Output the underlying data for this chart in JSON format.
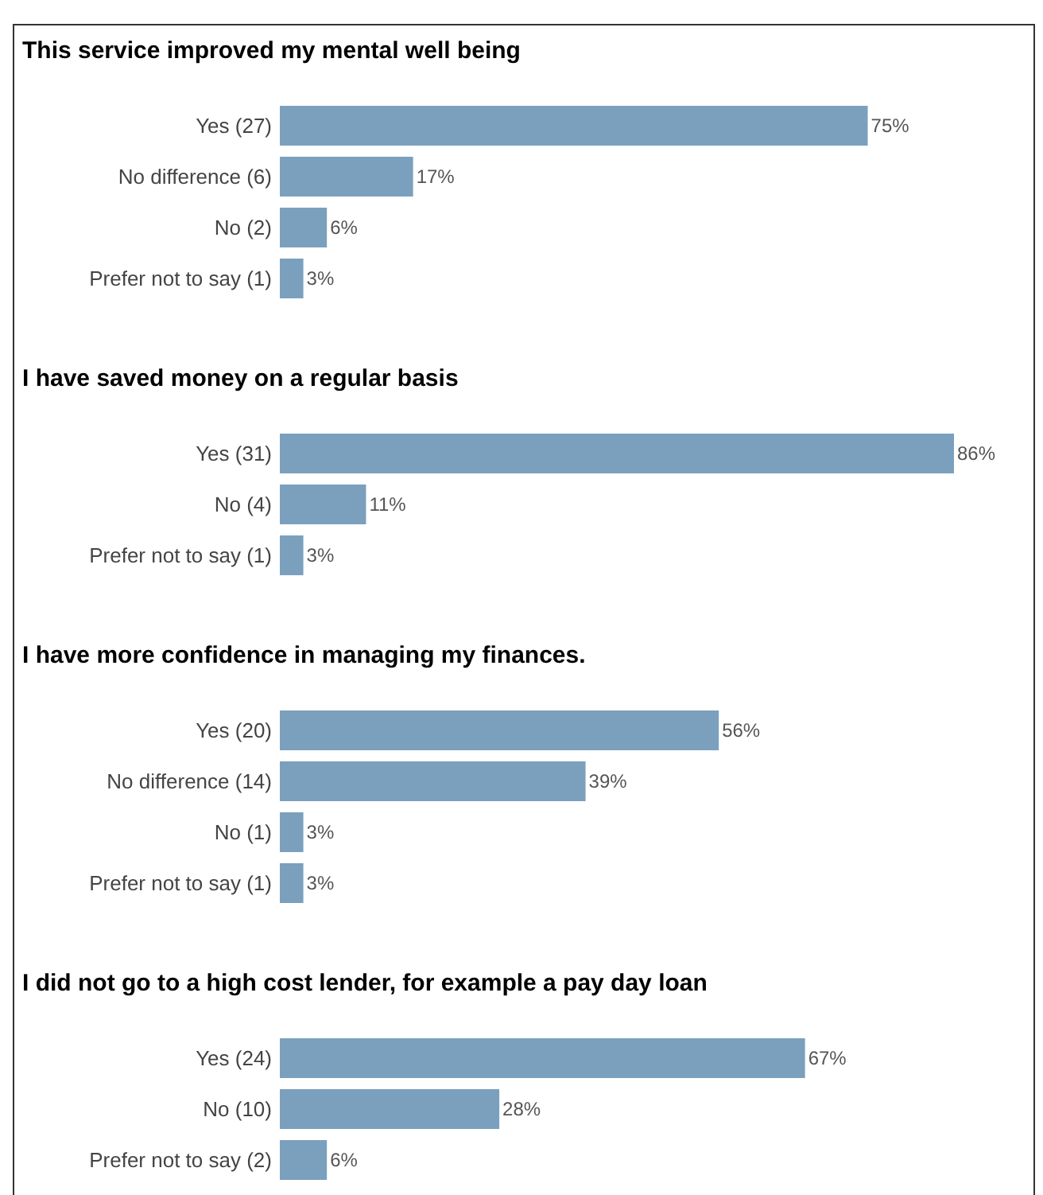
{
  "chart_data": [
    {
      "type": "bar",
      "orientation": "horizontal",
      "title": "This service improved my mental well being",
      "categories": [
        "Yes (27)",
        "No difference (6)",
        "No (2)",
        "Prefer not to say (1)"
      ],
      "values": [
        75,
        17,
        6,
        3
      ],
      "value_labels": [
        "75%",
        "17%",
        "6%",
        "3%"
      ],
      "color": "#7aa0be"
    },
    {
      "type": "bar",
      "orientation": "horizontal",
      "title": "I have saved money on a regular basis",
      "categories": [
        "Yes (31)",
        "No (4)",
        "Prefer not to say (1)"
      ],
      "values": [
        86,
        11,
        3
      ],
      "value_labels": [
        "86%",
        "11%",
        "3%"
      ],
      "color": "#7aa0be"
    },
    {
      "type": "bar",
      "orientation": "horizontal",
      "title": "I have more confidence in managing my finances.",
      "categories": [
        "Yes (20)",
        "No difference (14)",
        "No (1)",
        "Prefer not to say (1)"
      ],
      "values": [
        56,
        39,
        3,
        3
      ],
      "value_labels": [
        "56%",
        "39%",
        "3%",
        "3%"
      ],
      "color": "#7aa0be"
    },
    {
      "type": "bar",
      "orientation": "horizontal",
      "title": "I did not go to a high cost lender, for example a pay day loan",
      "categories": [
        "Yes (24)",
        "No (10)",
        "Prefer not to say (2)"
      ],
      "values": [
        67,
        28,
        6
      ],
      "value_labels": [
        "67%",
        "28%",
        "6%"
      ],
      "color": "#7aa0be"
    }
  ]
}
